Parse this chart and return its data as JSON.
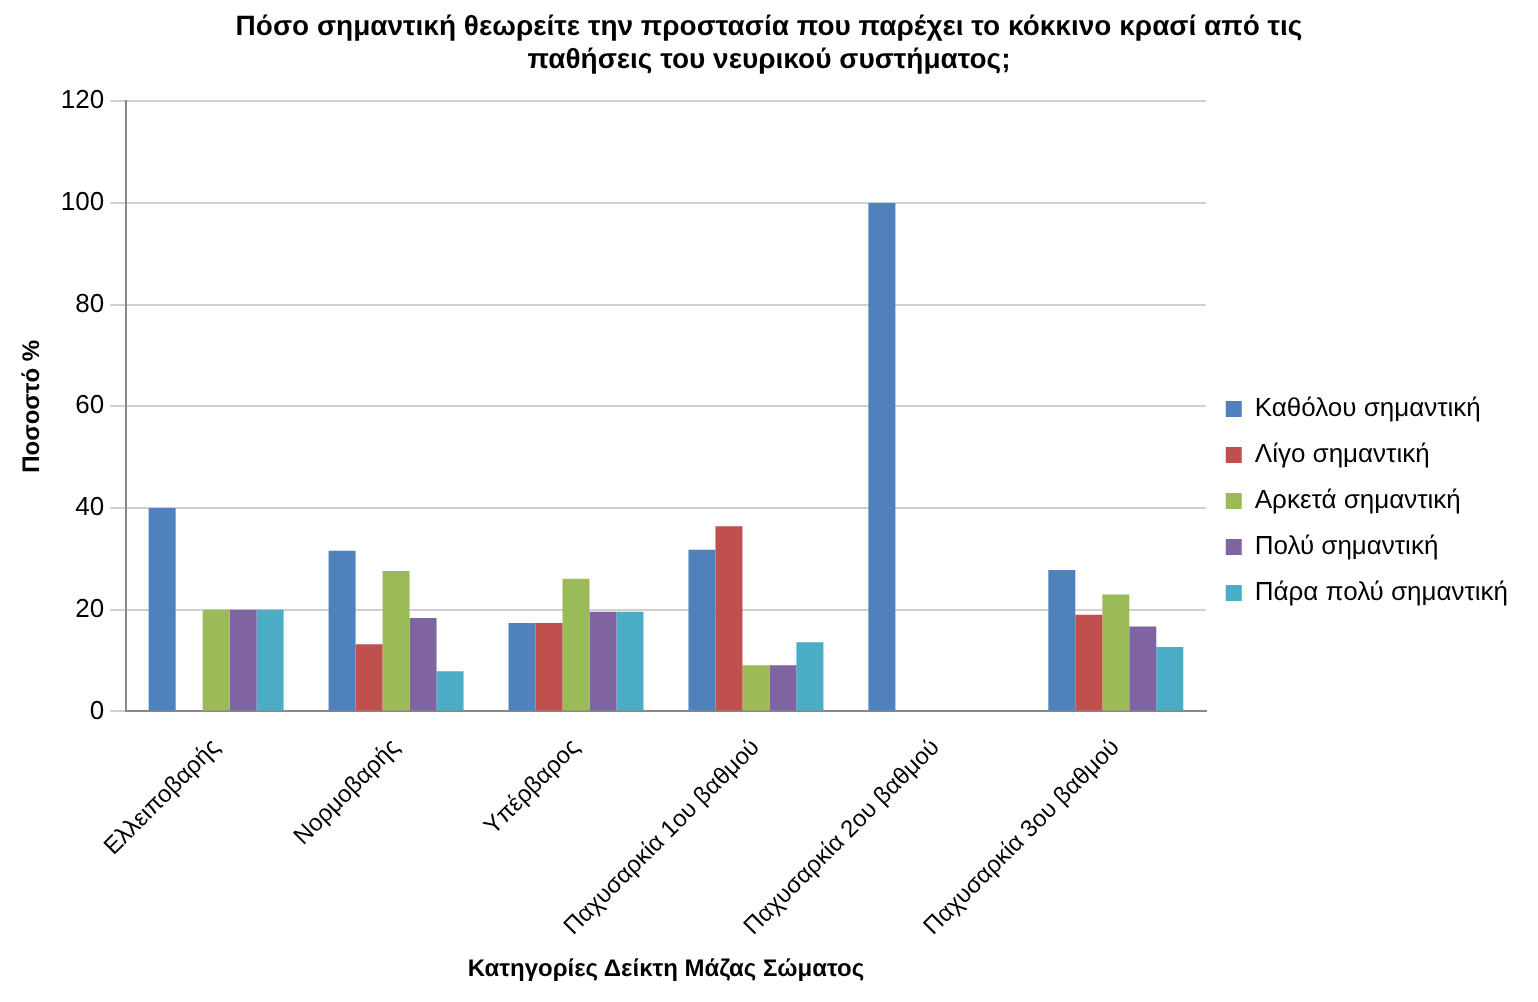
{
  "chart_data": {
    "type": "bar",
    "title": "Πόσο σημαντική θεωρείτε την προστασία που παρέχει το κόκκινο κρασί από τις παθήσεις του νευρικού συστήματος;",
    "xlabel": "Κατηγορίες Δείκτη Μάζας Σώματος",
    "ylabel": "Ποσοστό %",
    "categories": [
      "Ελλειποβαρής",
      "Νορμοβαρής",
      "Υπέρβαρος",
      "Παχυσαρκία 1ου βαθμού",
      "Παχυσαρκία 2ου βαθμού",
      "Παχυσαρκία 3ου βαθμού"
    ],
    "series": [
      {
        "name": "Καθόλου σημαντική",
        "color": "#4f81bd",
        "values": [
          40,
          31.6,
          17.4,
          31.8,
          100,
          27.8
        ]
      },
      {
        "name": "Λίγο σημαντική",
        "color": "#c0504d",
        "values": [
          0,
          13.2,
          17.4,
          36.4,
          0,
          19
        ]
      },
      {
        "name": "Αρκετά σημαντική",
        "color": "#9bbb59",
        "values": [
          20,
          27.6,
          26.1,
          9.1,
          0,
          23
        ]
      },
      {
        "name": "Πολύ σημαντική",
        "color": "#8064a2",
        "values": [
          20,
          18.4,
          19.6,
          9.1,
          0,
          16.7
        ]
      },
      {
        "name": "Πάρα πολύ σημαντική",
        "color": "#4bacc6",
        "values": [
          20,
          7.9,
          19.6,
          13.6,
          0,
          12.7
        ]
      }
    ],
    "ylim": [
      0,
      120
    ],
    "yticks": [
      0,
      20,
      40,
      60,
      80,
      100,
      120
    ],
    "grid": "y",
    "legend": "right"
  }
}
